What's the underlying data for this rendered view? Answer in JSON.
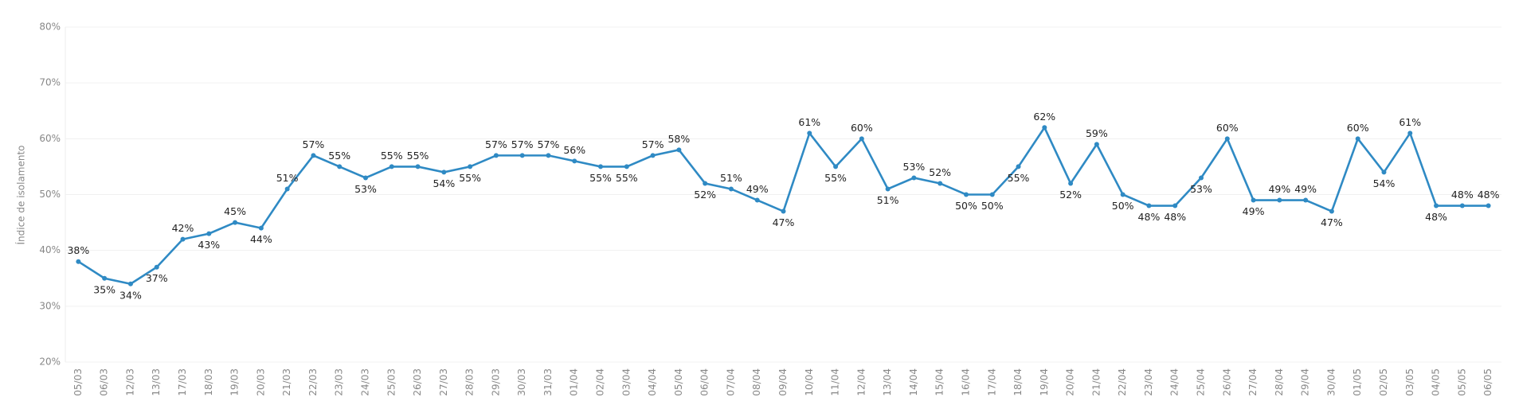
{
  "chart_data": {
    "type": "line",
    "y_label": "Índice de isolamento",
    "categories": [
      "05/03",
      "06/03",
      "12/03",
      "13/03",
      "17/03",
      "18/03",
      "19/03",
      "20/03",
      "21/03",
      "22/03",
      "23/03",
      "24/03",
      "25/03",
      "26/03",
      "27/03",
      "28/03",
      "29/03",
      "30/03",
      "31/03",
      "01/04",
      "02/04",
      "03/04",
      "04/04",
      "05/04",
      "06/04",
      "07/04",
      "08/04",
      "09/04",
      "10/04",
      "11/04",
      "12/04",
      "13/04",
      "14/04",
      "15/04",
      "16/04",
      "17/04",
      "18/04",
      "19/04",
      "20/04",
      "21/04",
      "22/04",
      "23/04",
      "24/04",
      "25/04",
      "26/04",
      "27/04",
      "28/04",
      "29/04",
      "30/04",
      "01/05",
      "02/05",
      "03/05",
      "04/05",
      "05/05",
      "06/05"
    ],
    "series": [
      {
        "name": "Índice de isolamento",
        "color": "#2f8ac4",
        "values": [
          38,
          35,
          34,
          37,
          42,
          43,
          45,
          44,
          51,
          57,
          55,
          53,
          55,
          55,
          54,
          55,
          57,
          57,
          57,
          56,
          55,
          55,
          57,
          58,
          52,
          51,
          49,
          47,
          61,
          55,
          60,
          51,
          53,
          52,
          50,
          50,
          55,
          62,
          52,
          59,
          50,
          48,
          48,
          53,
          60,
          49,
          49,
          49,
          47,
          60,
          54,
          61,
          48,
          48,
          48
        ],
        "value_labels": [
          "38%",
          "35%",
          "34%",
          "37%",
          "42%",
          "43%",
          "45%",
          "44%",
          "51%",
          "57%",
          "55%",
          "53%",
          "55%",
          "55%",
          "54%",
          "55%",
          "57%",
          "57%",
          "57%",
          "56%",
          "55%",
          "55%",
          "57%",
          "58%",
          "52%",
          "51%",
          "49%",
          "47%",
          "61%",
          "55%",
          "60%",
          "51%",
          "53%",
          "52%",
          "50%",
          "50%",
          "55%",
          "62%",
          "52%",
          "59%",
          "50%",
          "48%",
          "48%",
          "53%",
          "60%",
          "49%",
          "49%",
          "49%",
          "47%",
          "60%",
          "54%",
          "61%",
          "48%",
          "48%",
          "48%"
        ]
      }
    ],
    "ylim": [
      20,
      80
    ],
    "yticks": [
      {
        "value": 20,
        "label": "20%"
      },
      {
        "value": 30,
        "label": "30%"
      },
      {
        "value": 40,
        "label": "40%"
      },
      {
        "value": 50,
        "label": "50%"
      },
      {
        "value": 60,
        "label": "60%"
      },
      {
        "value": 70,
        "label": "70%"
      },
      {
        "value": 80,
        "label": "80%"
      }
    ],
    "grid": true
  }
}
